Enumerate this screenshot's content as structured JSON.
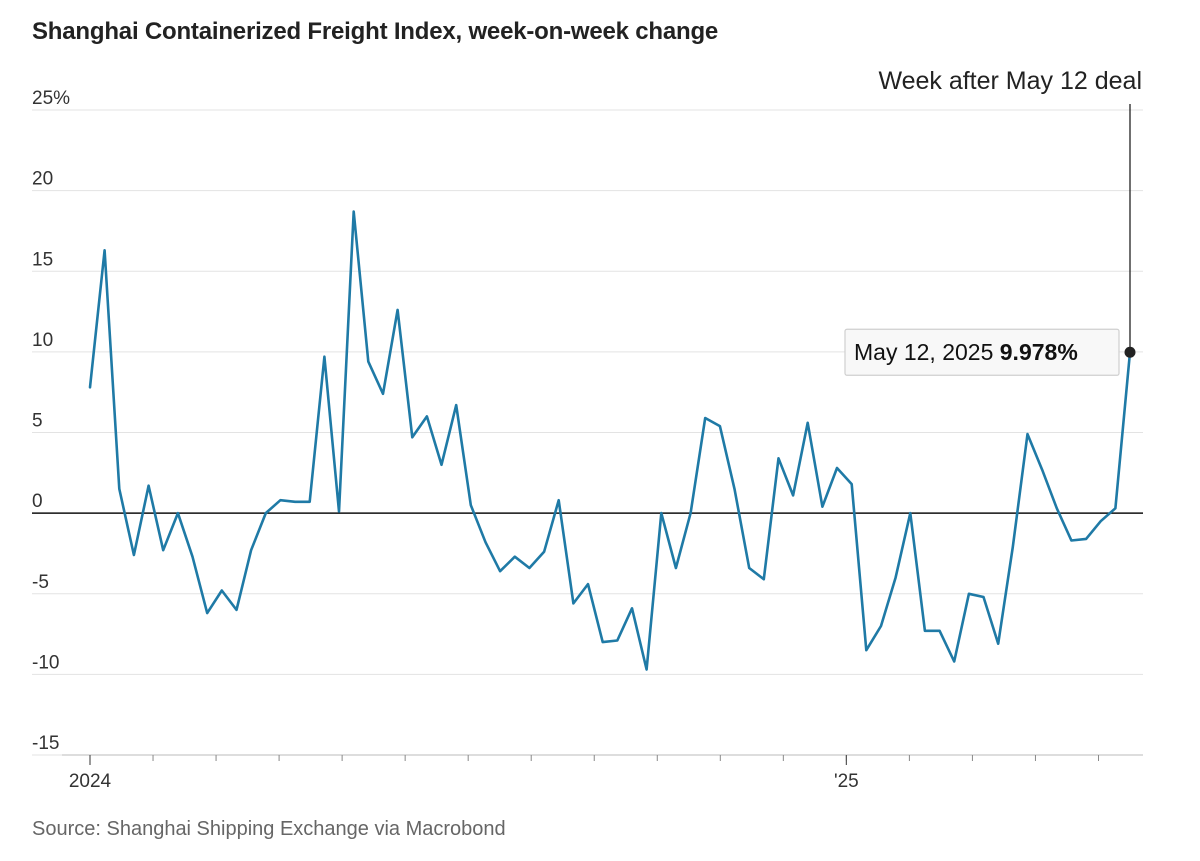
{
  "chart_data": {
    "type": "line",
    "title": "Shanghai Containerized Freight Index, week-on-week change",
    "source": "Source: Shanghai Shipping Exchange via Macrobond",
    "y_unit_suffix": "%",
    "ylim": [
      -15,
      25
    ],
    "yticks": [
      25,
      20,
      15,
      10,
      5,
      0,
      -5,
      -10,
      -15
    ],
    "ytick_labels": [
      "25%",
      "20",
      "15",
      "10",
      "5",
      "0",
      "-5",
      "-10",
      "-15"
    ],
    "x_range_weeks": [
      0,
      66
    ],
    "x_label_ticks": [
      {
        "week": 0,
        "label": "2024"
      },
      {
        "week": 48,
        "label": "'25"
      }
    ],
    "x_minor_ticks": [
      0,
      4,
      8,
      12,
      16,
      20,
      24,
      28,
      32,
      36,
      40,
      44,
      48,
      52,
      56,
      60,
      64
    ],
    "series": [
      {
        "name": "SCFI week-on-week change",
        "color": "#1f7aa6",
        "values": [
          7.8,
          16.3,
          1.5,
          -2.6,
          1.7,
          -2.3,
          0,
          -2.7,
          -6.2,
          -4.8,
          -6.0,
          -2.3,
          0,
          0.8,
          0.7,
          0.7,
          9.7,
          0.1,
          18.7,
          9.4,
          7.4,
          12.6,
          4.7,
          6.0,
          3.0,
          6.7,
          0.5,
          -1.8,
          -3.6,
          -2.7,
          -3.4,
          -2.4,
          0.8,
          -5.6,
          -4.4,
          -8.0,
          -7.9,
          -5.9,
          -9.7,
          0,
          -3.4,
          0,
          5.9,
          5.4,
          1.5,
          -3.4,
          -4.1,
          3.4,
          1.1,
          5.6,
          0.4,
          2.8,
          1.8,
          -8.5,
          -7.0,
          -4.0,
          0,
          -7.3,
          -7.3,
          -9.2,
          -5.0,
          -5.2,
          -8.1,
          -2.1,
          4.9,
          2.7,
          0.3,
          -1.7,
          -1.6,
          -0.5,
          0.3,
          9.978
        ]
      }
    ],
    "annotations": {
      "top_label": "Week after May 12 deal",
      "callout_date": "May 12, 2025",
      "callout_value": "9.978%"
    }
  }
}
